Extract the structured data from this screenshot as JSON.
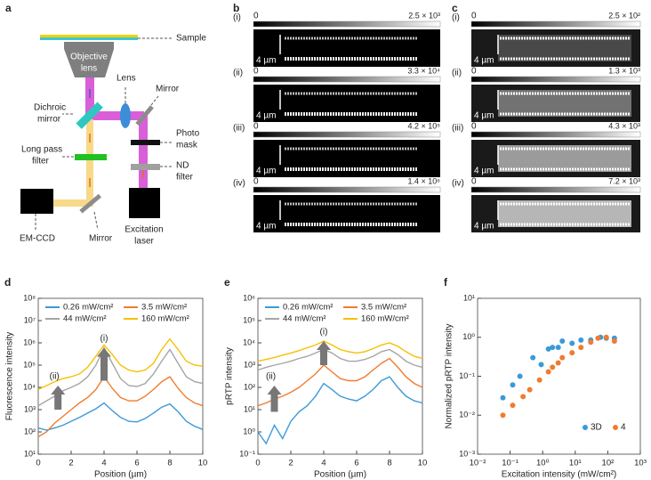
{
  "diagram": {
    "label": "a",
    "sample": "Sample",
    "objective": [
      "Objective",
      "lens"
    ],
    "lens": "Lens",
    "mirror_top": "Mirror",
    "dichroic": [
      "Dichroic",
      "mirror"
    ],
    "photo_mask": [
      "Photo",
      "mask"
    ],
    "long_pass": [
      "Long pass",
      "filter"
    ],
    "nd_filter": [
      "ND",
      "filter"
    ],
    "em_ccd": "EM-CCD",
    "mirror_bottom": "Mirror",
    "laser": [
      "Excitation",
      "laser"
    ]
  },
  "panel_b": {
    "label": "b",
    "rows": [
      {
        "label": "(i)",
        "min": "0",
        "max": "2.5 × 10³",
        "scale_bar": "4 µm"
      },
      {
        "label": "(ii)",
        "min": "0",
        "max": "3.3 × 10⁴",
        "scale_bar": "4 µm"
      },
      {
        "label": "(iii)",
        "min": "0",
        "max": "4.2 × 10⁵",
        "scale_bar": "4 µm"
      },
      {
        "label": "(iv)",
        "min": "0",
        "max": "1.4 × 10⁶",
        "scale_bar": "4 µm"
      }
    ]
  },
  "panel_c": {
    "label": "c",
    "rows": [
      {
        "label": "(i)",
        "min": "0",
        "max": "2.5 × 10²",
        "scale_bar": "4 µm"
      },
      {
        "label": "(ii)",
        "min": "0",
        "max": "1.3 × 10³",
        "scale_bar": "4 µm"
      },
      {
        "label": "(iii)",
        "min": "0",
        "max": "4.3 × 10³",
        "scale_bar": "4 µm"
      },
      {
        "label": "(iv)",
        "min": "0",
        "max": "7.2 × 10³",
        "scale_bar": "4 µm"
      }
    ]
  },
  "chart_data": [
    {
      "type": "line",
      "panel_label": "d",
      "xlabel": "Position (µm)",
      "ylabel": "Fluorescence intensity",
      "ylog": true,
      "x": [
        0,
        0.5,
        1,
        1.5,
        2,
        2.5,
        3,
        3.5,
        4,
        4.5,
        5,
        5.5,
        6,
        6.5,
        7,
        7.5,
        8,
        8.5,
        9,
        9.5,
        10
      ],
      "xlim": [
        0,
        10
      ],
      "xticks": [
        0,
        2,
        4,
        6,
        8,
        10
      ],
      "ylim": [
        10,
        100000000
      ],
      "yticks": [
        {
          "value": 10,
          "label": "10¹"
        },
        {
          "value": 100,
          "label": "10²"
        },
        {
          "value": 1000,
          "label": "10³"
        },
        {
          "value": 10000,
          "label": "10⁴"
        },
        {
          "value": 100000,
          "label": "10⁵"
        },
        {
          "value": 1000000,
          "label": "10⁶"
        },
        {
          "value": 10000000,
          "label": "10⁷"
        },
        {
          "value": 100000000,
          "label": "10⁸"
        }
      ],
      "annotations": [
        "(i)",
        "(ii)"
      ],
      "series": [
        {
          "name": "0.26 mW/cm²",
          "color": "#3a9ad9",
          "values": [
            150,
            120,
            150,
            200,
            300,
            450,
            700,
            1100,
            2000,
            900,
            450,
            300,
            280,
            400,
            700,
            1300,
            1800,
            800,
            300,
            180,
            130
          ]
        },
        {
          "name": "3.5 mW/cm²",
          "color": "#f07c30",
          "values": [
            60,
            100,
            250,
            500,
            1000,
            2000,
            3500,
            8000,
            30000,
            9000,
            3500,
            2500,
            2500,
            4000,
            8000,
            18000,
            30000,
            9000,
            3500,
            2000,
            1500
          ]
        },
        {
          "name": "44 mW/cm²",
          "color": "#a5a5a5",
          "values": [
            1500,
            2500,
            4000,
            7000,
            10000,
            15000,
            30000,
            100000,
            600000,
            120000,
            25000,
            12000,
            11000,
            15000,
            40000,
            150000,
            500000,
            120000,
            30000,
            18000,
            15000
          ]
        },
        {
          "name": "160 mW/cm²",
          "color": "#f5c000",
          "values": [
            8000,
            12000,
            18000,
            25000,
            30000,
            40000,
            80000,
            250000,
            800000,
            300000,
            100000,
            60000,
            50000,
            60000,
            120000,
            500000,
            1500000,
            500000,
            150000,
            100000,
            90000
          ]
        }
      ]
    },
    {
      "type": "line",
      "panel_label": "e",
      "xlabel": "Position (µm)",
      "ylabel": "pRTP intensity",
      "ylog": true,
      "x": [
        0,
        0.5,
        1,
        1.5,
        2,
        2.5,
        3,
        3.5,
        4,
        4.5,
        5,
        5.5,
        6,
        6.5,
        7,
        7.5,
        8,
        8.5,
        9,
        9.5,
        10
      ],
      "xlim": [
        0,
        10
      ],
      "xticks": [
        0,
        2,
        4,
        6,
        8,
        10
      ],
      "ylim": [
        0.1,
        1000000
      ],
      "yticks": [
        {
          "value": 0.1,
          "label": "10⁻¹"
        },
        {
          "value": 1,
          "label": "10⁰"
        },
        {
          "value": 10,
          "label": "10¹"
        },
        {
          "value": 100,
          "label": "10²"
        },
        {
          "value": 1000,
          "label": "10³"
        },
        {
          "value": 10000,
          "label": "10⁴"
        },
        {
          "value": 100000,
          "label": "10⁵"
        },
        {
          "value": 1000000,
          "label": "10⁶"
        }
      ],
      "annotations": [
        "(i)",
        "(ii)"
      ],
      "series": [
        {
          "name": "0.26 mW/cm²",
          "color": "#3a9ad9",
          "values": [
            1,
            0.3,
            2,
            0.5,
            3,
            8,
            15,
            40,
            150,
            80,
            40,
            30,
            25,
            40,
            80,
            200,
            300,
            100,
            40,
            25,
            20
          ]
        },
        {
          "name": "3.5 mW/cm²",
          "color": "#f07c30",
          "values": [
            15,
            20,
            30,
            40,
            60,
            100,
            200,
            400,
            1000,
            500,
            250,
            200,
            200,
            300,
            600,
            1200,
            2000,
            800,
            300,
            150,
            100
          ]
        },
        {
          "name": "44 mW/cm²",
          "color": "#a5a5a5",
          "values": [
            600,
            800,
            1000,
            1200,
            1500,
            2000,
            2500,
            3500,
            5000,
            3500,
            2000,
            1500,
            1500,
            1800,
            2500,
            4000,
            5000,
            3000,
            1500,
            1000,
            800
          ]
        },
        {
          "name": "160 mW/cm²",
          "color": "#f5c000",
          "values": [
            1500,
            1800,
            2200,
            2800,
            3500,
            4500,
            6000,
            8000,
            12000,
            8000,
            5000,
            4000,
            3500,
            4000,
            5500,
            8000,
            10000,
            7000,
            4000,
            2500,
            2000
          ]
        }
      ]
    },
    {
      "type": "scatter",
      "panel_label": "f",
      "xlabel": "Excitation intensity (mW/cm²)",
      "ylabel": "Normalized pRTP intensity",
      "xlog": true,
      "ylog": true,
      "xlim": [
        0.01,
        1000
      ],
      "xticks": [
        {
          "value": 0.01,
          "label": "10⁻²"
        },
        {
          "value": 0.1,
          "label": "10⁻¹"
        },
        {
          "value": 1,
          "label": "10⁰"
        },
        {
          "value": 10,
          "label": "10¹"
        },
        {
          "value": 100,
          "label": "10²"
        },
        {
          "value": 1000,
          "label": "10³"
        }
      ],
      "ylim": [
        0.001,
        10
      ],
      "yticks": [
        {
          "value": 0.001,
          "label": "10⁻³"
        },
        {
          "value": 0.01,
          "label": "10⁻²"
        },
        {
          "value": 0.1,
          "label": "10⁻¹"
        },
        {
          "value": 1,
          "label": "10⁰"
        },
        {
          "value": 10,
          "label": "10¹"
        }
      ],
      "series": [
        {
          "name": "3D",
          "color": "#3a9ad9",
          "x": [
            0.06,
            0.12,
            0.2,
            0.5,
            0.9,
            1.5,
            2,
            3,
            4,
            8,
            15,
            30,
            60,
            90,
            160
          ],
          "values": [
            0.028,
            0.06,
            0.1,
            0.3,
            0.2,
            0.5,
            0.55,
            0.55,
            0.8,
            0.7,
            0.85,
            0.85,
            1.0,
            0.95,
            0.95
          ]
        },
        {
          "name": "4",
          "color": "#f07c30",
          "x": [
            0.06,
            0.12,
            0.25,
            0.4,
            0.8,
            1.5,
            2,
            3,
            4,
            8,
            15,
            30,
            50,
            90,
            160
          ],
          "values": [
            0.01,
            0.018,
            0.03,
            0.045,
            0.08,
            0.13,
            0.17,
            0.22,
            0.3,
            0.4,
            0.55,
            0.75,
            0.95,
            1.0,
            0.8
          ]
        }
      ]
    }
  ]
}
